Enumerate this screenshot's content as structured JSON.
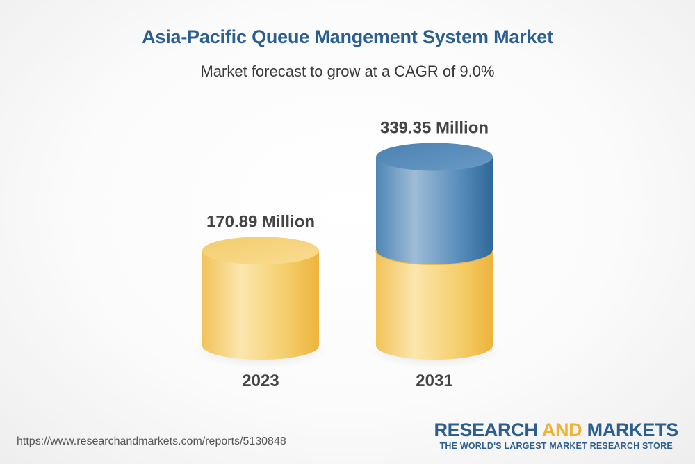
{
  "header": {
    "title": "Asia-Pacific Queue Mangement System Market",
    "subtitle": "Market forecast to grow at a CAGR of 9.0%"
  },
  "chart_data": {
    "type": "bar",
    "style": "3d-cylinder",
    "categories": [
      "2023",
      "2031"
    ],
    "values": [
      170.89,
      339.35
    ],
    "unit": "Million",
    "data_labels": [
      "170.89 Million",
      "339.35 Million"
    ],
    "colors": {
      "base": "#f2c14e",
      "growth": "#3a78ac"
    }
  },
  "footer": {
    "url": "https://www.researchandmarkets.com/reports/5130848",
    "brand": {
      "word1": "RESEARCH",
      "word2": "AND",
      "word3": "MARKETS",
      "tagline": "THE WORLD'S LARGEST MARKET RESEARCH STORE"
    }
  }
}
